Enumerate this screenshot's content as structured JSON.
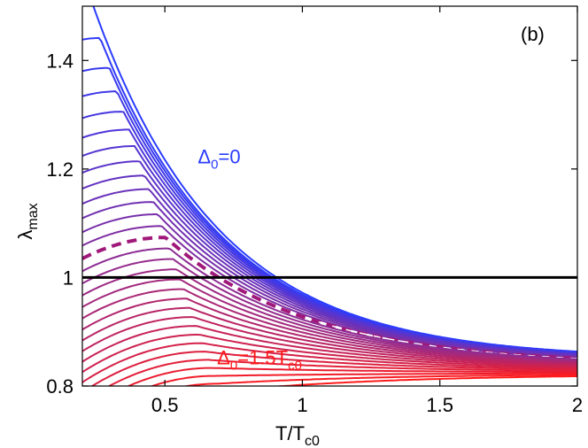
{
  "chart_data": {
    "type": "line",
    "panel_label": "(b)",
    "xlabel": "T/T",
    "xlabel_sub": "c0",
    "ylabel": "λ",
    "ylabel_sub": "max",
    "xlim": [
      0.2,
      2.0
    ],
    "ylim": [
      0.8,
      1.5
    ],
    "x_ticks": [
      0.5,
      1,
      1.5,
      2
    ],
    "x_tick_labels": [
      "0.5",
      "1",
      "1.5",
      "2"
    ],
    "y_ticks": [
      0.8,
      1.0,
      1.2,
      1.4
    ],
    "y_tick_labels": [
      "0.8",
      "1",
      "1.2",
      "1.4"
    ],
    "grid": false,
    "reference_line": {
      "y": 1.0,
      "color": "#000000"
    },
    "family": {
      "count": 31,
      "delta_min": 0,
      "delta_max": 1.5,
      "dashed_index": 13,
      "color_start": "#2a3cff",
      "color_end": "#ff1a1a",
      "dashed_color": "#a0187a",
      "x_samples": [
        0.2,
        0.25,
        0.3,
        0.4,
        0.5,
        0.6,
        0.7,
        0.8,
        0.9,
        1.0,
        1.1,
        1.2,
        1.3,
        1.4,
        1.5,
        1.6,
        1.7,
        1.8,
        1.9,
        2.0
      ],
      "description_curves": [
        {
          "delta": 0,
          "values": [
            1.56,
            1.47,
            1.38,
            1.25,
            1.16,
            1.1,
            1.06,
            1.03,
            1.01,
            0.995,
            0.975,
            0.955,
            0.935,
            0.915,
            0.9,
            0.885,
            0.875,
            0.865,
            0.858,
            0.85
          ]
        },
        {
          "delta": 1.5,
          "values": [
            0.81,
            0.825,
            0.84,
            0.865,
            0.878,
            0.883,
            0.885,
            0.884,
            0.882,
            0.878,
            0.872,
            0.866,
            0.86,
            0.853,
            0.847,
            0.841,
            0.836,
            0.83,
            0.826,
            0.822
          ]
        }
      ]
    },
    "annotations": [
      {
        "text": "Δ",
        "sub": "0",
        "suffix": "=0",
        "x": 0.62,
        "y": 1.21,
        "color": "#2a3cff"
      },
      {
        "text": "Δ",
        "sub": "0",
        "suffix": "=1.5T",
        "sub2": "c0",
        "x": 0.69,
        "y": 0.84,
        "color": "#ff1a1a"
      }
    ]
  }
}
